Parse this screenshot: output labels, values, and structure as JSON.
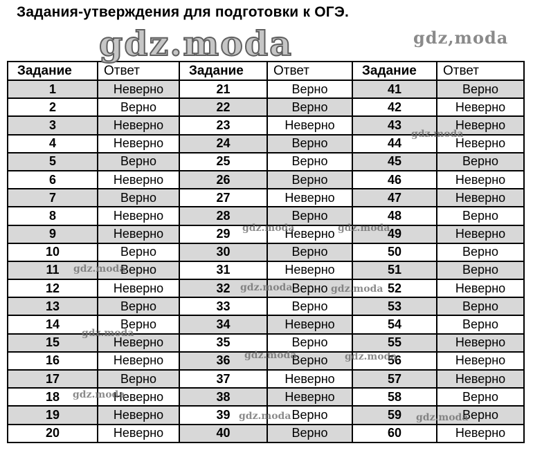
{
  "page": {
    "title": "Задания-утверждения для подготовки к ОГЭ."
  },
  "watermarks": {
    "large": "gdz.moda",
    "top_right": "gdz,moda",
    "scattered": "gdz.moda"
  },
  "table": {
    "headers": {
      "task": "Задание",
      "answer": "Ответ"
    },
    "groups": [
      {
        "shading": "odd",
        "rows": [
          {
            "n": 1,
            "a": "Неверно"
          },
          {
            "n": 2,
            "a": "Верно"
          },
          {
            "n": 3,
            "a": "Неверно"
          },
          {
            "n": 4,
            "a": "Неверно"
          },
          {
            "n": 5,
            "a": "Верно"
          },
          {
            "n": 6,
            "a": "Неверно"
          },
          {
            "n": 7,
            "a": "Верно"
          },
          {
            "n": 8,
            "a": "Неверно"
          },
          {
            "n": 9,
            "a": "Неверно"
          },
          {
            "n": 10,
            "a": "Верно"
          },
          {
            "n": 11,
            "a": "Верно"
          },
          {
            "n": 12,
            "a": "Неверно"
          },
          {
            "n": 13,
            "a": "Верно"
          },
          {
            "n": 14,
            "a": "Верно"
          },
          {
            "n": 15,
            "a": "Неверно"
          },
          {
            "n": 16,
            "a": "Неверно"
          },
          {
            "n": 17,
            "a": "Верно"
          },
          {
            "n": 18,
            "a": "Неверно"
          },
          {
            "n": 19,
            "a": "Неверно"
          },
          {
            "n": 20,
            "a": "Неверно"
          }
        ]
      },
      {
        "shading": "even",
        "rows": [
          {
            "n": 21,
            "a": "Верно"
          },
          {
            "n": 22,
            "a": "Верно"
          },
          {
            "n": 23,
            "a": "Неверно"
          },
          {
            "n": 24,
            "a": "Верно"
          },
          {
            "n": 25,
            "a": "Верно"
          },
          {
            "n": 26,
            "a": "Верно"
          },
          {
            "n": 27,
            "a": "Неверно"
          },
          {
            "n": 28,
            "a": "Верно"
          },
          {
            "n": 29,
            "a": "Неверно"
          },
          {
            "n": 30,
            "a": "Верно"
          },
          {
            "n": 31,
            "a": "Неверно"
          },
          {
            "n": 32,
            "a": "Верно"
          },
          {
            "n": 33,
            "a": "Верно"
          },
          {
            "n": 34,
            "a": "Неверно"
          },
          {
            "n": 35,
            "a": "Верно"
          },
          {
            "n": 36,
            "a": "Верно"
          },
          {
            "n": 37,
            "a": "Неверно"
          },
          {
            "n": 38,
            "a": "Неверно"
          },
          {
            "n": 39,
            "a": "Верно"
          },
          {
            "n": 40,
            "a": "Верно"
          }
        ]
      },
      {
        "shading": "odd",
        "rows": [
          {
            "n": 41,
            "a": "Верно"
          },
          {
            "n": 42,
            "a": "Неверно"
          },
          {
            "n": 43,
            "a": "Неверно"
          },
          {
            "n": 44,
            "a": "Неверно"
          },
          {
            "n": 45,
            "a": "Верно"
          },
          {
            "n": 46,
            "a": "Неверно"
          },
          {
            "n": 47,
            "a": "Неверно"
          },
          {
            "n": 48,
            "a": "Верно"
          },
          {
            "n": 49,
            "a": "Неверно"
          },
          {
            "n": 50,
            "a": "Верно"
          },
          {
            "n": 51,
            "a": "Верно"
          },
          {
            "n": 52,
            "a": "Неверно"
          },
          {
            "n": 53,
            "a": "Верно"
          },
          {
            "n": 54,
            "a": "Верно"
          },
          {
            "n": 55,
            "a": "Неверно"
          },
          {
            "n": 56,
            "a": "Неверно"
          },
          {
            "n": 57,
            "a": "Неверно"
          },
          {
            "n": 58,
            "a": "Верно"
          },
          {
            "n": 59,
            "a": "Верно"
          },
          {
            "n": 60,
            "a": "Неверно"
          }
        ]
      }
    ]
  }
}
